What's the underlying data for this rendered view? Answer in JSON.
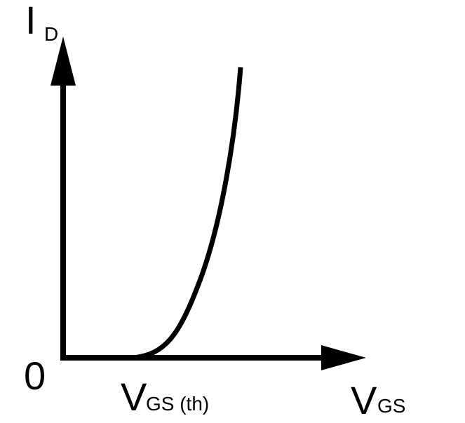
{
  "y_axis": {
    "label": "I",
    "subscript": "D"
  },
  "x_axis": {
    "label": "V",
    "subscript": "GS"
  },
  "origin": "0",
  "threshold": {
    "label": "V",
    "subscript": "GS (th)"
  }
}
